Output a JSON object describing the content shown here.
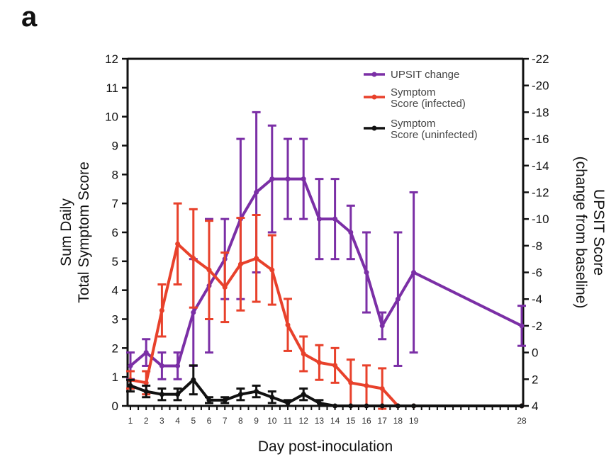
{
  "panel_label": "a",
  "chart_data": {
    "type": "line",
    "x_axis": {
      "title": "Day post-inoculation",
      "ticks": [
        1,
        2,
        3,
        4,
        5,
        6,
        7,
        8,
        9,
        10,
        11,
        12,
        13,
        14,
        15,
        16,
        17,
        18,
        19,
        28
      ],
      "tick_labels": [
        "1",
        "2",
        "3",
        "4",
        "5",
        "6",
        "7",
        "8",
        "9",
        "10",
        "11",
        "12",
        "13",
        "14",
        "15",
        "16",
        "17",
        "18",
        "19",
        "28"
      ]
    },
    "y_left": {
      "title_line1": "Sum Daily",
      "title_line2": "Total Symptom Score",
      "ylim": [
        0,
        12
      ],
      "tick_labels": [
        "0",
        "1",
        "2",
        "3",
        "4",
        "5",
        "6",
        "7",
        "8",
        "9",
        "10",
        "11",
        "12"
      ]
    },
    "y_right": {
      "title_line1": "UPSIT Score",
      "title_line2": "(change from baseline)",
      "ylim": [
        4,
        -22
      ],
      "ticks": [
        4,
        2,
        0,
        -2,
        -4,
        -6,
        -8,
        -10,
        -12,
        -14,
        -16,
        -18,
        -20,
        -22
      ],
      "tick_labels": [
        "4",
        "2",
        "0",
        "-2",
        "-4",
        "-6",
        "-8",
        "-10",
        "-12",
        "-14",
        "-16",
        "-18",
        "-20",
        "-22"
      ]
    },
    "legend": {
      "position": "top-right",
      "entries": [
        {
          "line1": "UPSIT change",
          "line2": ""
        },
        {
          "line1": "Symptom",
          "line2": "Score (infected)"
        },
        {
          "line1": "Symptom",
          "line2": "Score (uninfected)"
        }
      ]
    },
    "series": [
      {
        "name": "UPSIT change",
        "axis": "right",
        "color": "#7b2fa6",
        "x": [
          1,
          2,
          3,
          4,
          5,
          6,
          7,
          8,
          9,
          10,
          11,
          12,
          13,
          14,
          15,
          16,
          17,
          18,
          19,
          28
        ],
        "y": [
          1,
          0,
          1,
          1,
          -3,
          -5,
          -7,
          -10,
          -12,
          -13,
          -13,
          -13,
          -10,
          -10,
          -9,
          -6,
          -2,
          -4,
          -6,
          -2
        ],
        "err": [
          1,
          1,
          1,
          1,
          4,
          5,
          3,
          6,
          6,
          4,
          3,
          3,
          3,
          3,
          2,
          3,
          1,
          5,
          6,
          1.5
        ]
      },
      {
        "name": "Symptom Score (infected)",
        "axis": "left",
        "color": "#e8412b",
        "x": [
          1,
          2,
          3,
          4,
          5,
          6,
          7,
          8,
          9,
          10,
          11,
          12,
          13,
          14,
          15,
          16,
          17,
          18,
          19,
          28
        ],
        "y": [
          0.9,
          0.8,
          3.3,
          5.6,
          5.1,
          4.7,
          4.1,
          4.9,
          5.1,
          4.7,
          2.8,
          1.8,
          1.5,
          1.4,
          0.8,
          0.7,
          0.6,
          0,
          0,
          0
        ],
        "err": [
          0.3,
          0.4,
          0.9,
          1.4,
          1.7,
          1.7,
          1.2,
          1.6,
          1.5,
          1.2,
          0.9,
          0.6,
          0.6,
          0.6,
          0.8,
          0.7,
          0.7,
          0,
          0,
          0
        ]
      },
      {
        "name": "Symptom Score (uninfected)",
        "axis": "left",
        "color": "#111111",
        "x": [
          1,
          2,
          3,
          4,
          5,
          6,
          7,
          8,
          9,
          10,
          11,
          12,
          13,
          14,
          15,
          16,
          17,
          18,
          19,
          28
        ],
        "y": [
          0.7,
          0.5,
          0.4,
          0.4,
          0.9,
          0.2,
          0.2,
          0.4,
          0.5,
          0.3,
          0.1,
          0.4,
          0.1,
          0,
          0,
          0,
          0,
          0,
          0,
          0
        ],
        "err": [
          0.2,
          0.2,
          0.2,
          0.2,
          0.5,
          0.1,
          0.1,
          0.2,
          0.2,
          0.2,
          0.1,
          0.2,
          0.1,
          0,
          0,
          0,
          0,
          0,
          0,
          0
        ]
      }
    ]
  }
}
